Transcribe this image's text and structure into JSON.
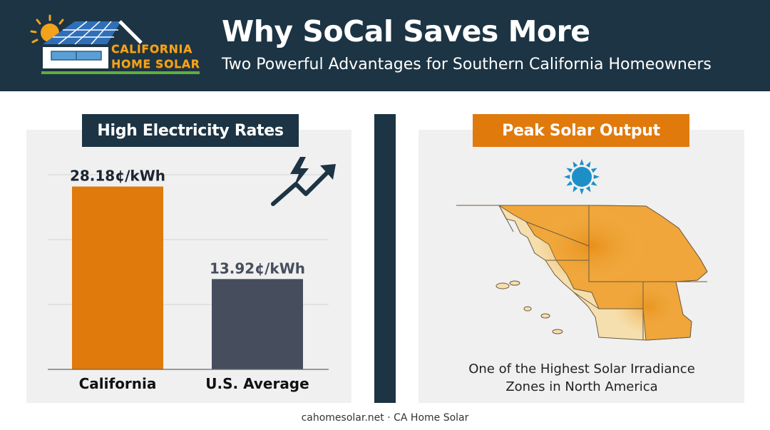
{
  "header": {
    "logo_line1": "CALIFORNIA",
    "logo_line2": "HOME SOLAR",
    "title": "Why SoCal Saves More",
    "subtitle": "Two Powerful Advantages for Southern California Homeowners"
  },
  "left_panel": {
    "heading": "High Electricity Rates",
    "icon": "rising-arrow-lightning-icon"
  },
  "right_panel": {
    "heading": "Peak Solar Output",
    "icon": "sun-icon",
    "caption_line1": "One of the Highest Solar Irradiance",
    "caption_line2": "Zones in North America"
  },
  "chart_data": {
    "type": "bar",
    "categories": [
      "California",
      "U.S. Average"
    ],
    "values": [
      28.18,
      13.92
    ],
    "value_labels": [
      "28.18¢/kWh",
      "13.92¢/kWh"
    ],
    "colors": [
      "#e07a0c",
      "#464e5e"
    ],
    "ylim": [
      0,
      30
    ],
    "grid": true
  },
  "footer": {
    "text": "cahomesolar.net · CA Home Solar"
  },
  "colors": {
    "navy": "#1c3443",
    "orange": "#e07a0c",
    "slate": "#464e5e",
    "panel_bg": "#f0f0f0"
  }
}
